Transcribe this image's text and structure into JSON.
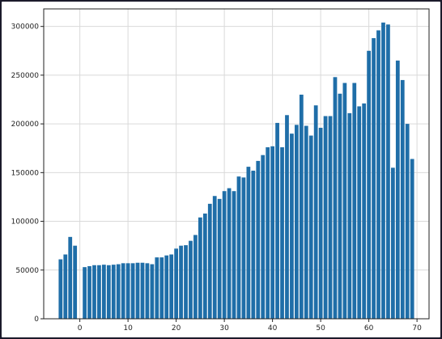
{
  "chart_data": {
    "type": "bar",
    "title": "",
    "xlabel": "",
    "ylabel": "",
    "xlim": [
      -7.5,
      72.5
    ],
    "ylim": [
      0,
      318000
    ],
    "grid": true,
    "colors": {
      "bar": "#1f6ea8",
      "grid": "#d9d9d9",
      "axis": "#222222"
    },
    "xticks": [
      0,
      10,
      20,
      30,
      40,
      50,
      60,
      70
    ],
    "xtick_labels": [
      "0",
      "10",
      "20",
      "30",
      "40",
      "50",
      "60",
      "70"
    ],
    "yticks": [
      0,
      50000,
      100000,
      150000,
      200000,
      250000,
      300000
    ],
    "ytick_labels": [
      "0",
      "50000",
      "100000",
      "150000",
      "200000",
      "250000",
      "300000"
    ],
    "x": [
      -4,
      -3,
      -2,
      -1,
      1,
      2,
      3,
      4,
      5,
      6,
      7,
      8,
      9,
      10,
      11,
      12,
      13,
      14,
      15,
      16,
      17,
      18,
      19,
      20,
      21,
      22,
      23,
      24,
      25,
      26,
      27,
      28,
      29,
      30,
      31,
      32,
      33,
      34,
      35,
      36,
      37,
      38,
      39,
      40,
      41,
      42,
      43,
      44,
      45,
      46,
      47,
      48,
      49,
      50,
      51,
      52,
      53,
      54,
      55,
      56,
      57,
      58,
      59,
      60,
      61,
      62,
      63,
      64,
      65,
      66,
      67,
      68,
      69
    ],
    "values": [
      61000,
      66000,
      84000,
      75000,
      53000,
      54000,
      55000,
      55000,
      55500,
      55000,
      55500,
      56000,
      57000,
      57000,
      57000,
      57500,
      57500,
      57000,
      56000,
      63000,
      63000,
      65000,
      66000,
      72000,
      75000,
      75500,
      80000,
      86000,
      104000,
      108000,
      118000,
      126000,
      123000,
      131000,
      134000,
      131000,
      146000,
      145000,
      156000,
      152000,
      162000,
      168000,
      176000,
      177000,
      201000,
      176000,
      209000,
      190000,
      199000,
      230000,
      198000,
      188000,
      219000,
      196000,
      208000,
      208000,
      248000,
      231000,
      242000,
      211000,
      242000,
      218000,
      221000,
      275000,
      288000,
      296000,
      304000,
      302000,
      155000,
      265000,
      245000,
      200000,
      164000
    ]
  }
}
